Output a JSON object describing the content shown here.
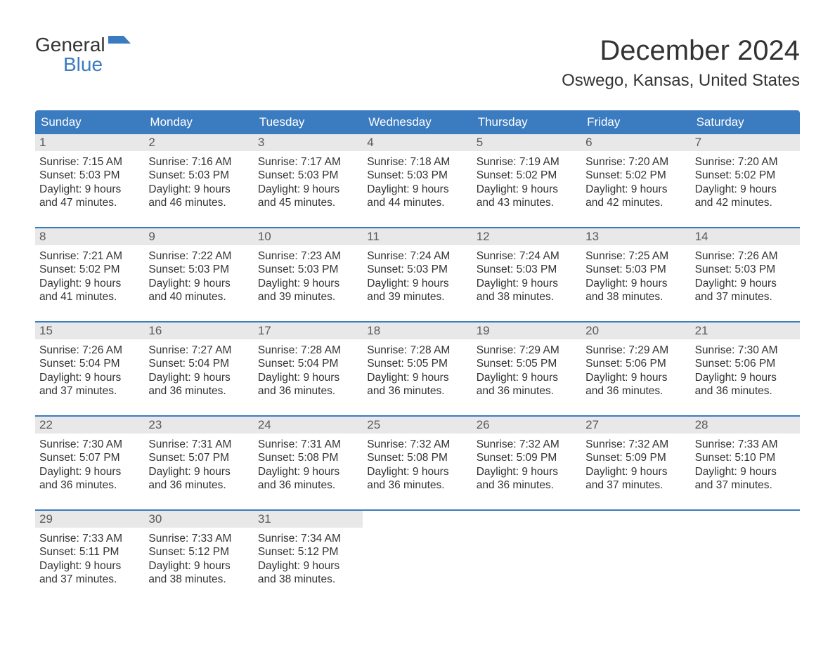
{
  "logo": {
    "line1": "General",
    "line2": "Blue",
    "icon_color": "#3b7bbf"
  },
  "title": "December 2024",
  "location": "Oswego, Kansas, United States",
  "colors": {
    "header_bg": "#3b7bbf",
    "header_text": "#ffffff",
    "daynum_bg": "#e8e8e8",
    "daynum_text": "#5a5a5a",
    "body_text": "#333333",
    "background": "#ffffff"
  },
  "typography": {
    "title_fontsize": 40,
    "location_fontsize": 24,
    "header_fontsize": 17,
    "daynum_fontsize": 17,
    "body_fontsize": 15.5
  },
  "day_headers": [
    "Sunday",
    "Monday",
    "Tuesday",
    "Wednesday",
    "Thursday",
    "Friday",
    "Saturday"
  ],
  "weeks": [
    [
      {
        "n": "1",
        "sunrise": "7:15 AM",
        "sunset": "5:03 PM",
        "daylight_l1": "Daylight: 9 hours",
        "daylight_l2": "and 47 minutes."
      },
      {
        "n": "2",
        "sunrise": "7:16 AM",
        "sunset": "5:03 PM",
        "daylight_l1": "Daylight: 9 hours",
        "daylight_l2": "and 46 minutes."
      },
      {
        "n": "3",
        "sunrise": "7:17 AM",
        "sunset": "5:03 PM",
        "daylight_l1": "Daylight: 9 hours",
        "daylight_l2": "and 45 minutes."
      },
      {
        "n": "4",
        "sunrise": "7:18 AM",
        "sunset": "5:03 PM",
        "daylight_l1": "Daylight: 9 hours",
        "daylight_l2": "and 44 minutes."
      },
      {
        "n": "5",
        "sunrise": "7:19 AM",
        "sunset": "5:02 PM",
        "daylight_l1": "Daylight: 9 hours",
        "daylight_l2": "and 43 minutes."
      },
      {
        "n": "6",
        "sunrise": "7:20 AM",
        "sunset": "5:02 PM",
        "daylight_l1": "Daylight: 9 hours",
        "daylight_l2": "and 42 minutes."
      },
      {
        "n": "7",
        "sunrise": "7:20 AM",
        "sunset": "5:02 PM",
        "daylight_l1": "Daylight: 9 hours",
        "daylight_l2": "and 42 minutes."
      }
    ],
    [
      {
        "n": "8",
        "sunrise": "7:21 AM",
        "sunset": "5:02 PM",
        "daylight_l1": "Daylight: 9 hours",
        "daylight_l2": "and 41 minutes."
      },
      {
        "n": "9",
        "sunrise": "7:22 AM",
        "sunset": "5:03 PM",
        "daylight_l1": "Daylight: 9 hours",
        "daylight_l2": "and 40 minutes."
      },
      {
        "n": "10",
        "sunrise": "7:23 AM",
        "sunset": "5:03 PM",
        "daylight_l1": "Daylight: 9 hours",
        "daylight_l2": "and 39 minutes."
      },
      {
        "n": "11",
        "sunrise": "7:24 AM",
        "sunset": "5:03 PM",
        "daylight_l1": "Daylight: 9 hours",
        "daylight_l2": "and 39 minutes."
      },
      {
        "n": "12",
        "sunrise": "7:24 AM",
        "sunset": "5:03 PM",
        "daylight_l1": "Daylight: 9 hours",
        "daylight_l2": "and 38 minutes."
      },
      {
        "n": "13",
        "sunrise": "7:25 AM",
        "sunset": "5:03 PM",
        "daylight_l1": "Daylight: 9 hours",
        "daylight_l2": "and 38 minutes."
      },
      {
        "n": "14",
        "sunrise": "7:26 AM",
        "sunset": "5:03 PM",
        "daylight_l1": "Daylight: 9 hours",
        "daylight_l2": "and 37 minutes."
      }
    ],
    [
      {
        "n": "15",
        "sunrise": "7:26 AM",
        "sunset": "5:04 PM",
        "daylight_l1": "Daylight: 9 hours",
        "daylight_l2": "and 37 minutes."
      },
      {
        "n": "16",
        "sunrise": "7:27 AM",
        "sunset": "5:04 PM",
        "daylight_l1": "Daylight: 9 hours",
        "daylight_l2": "and 36 minutes."
      },
      {
        "n": "17",
        "sunrise": "7:28 AM",
        "sunset": "5:04 PM",
        "daylight_l1": "Daylight: 9 hours",
        "daylight_l2": "and 36 minutes."
      },
      {
        "n": "18",
        "sunrise": "7:28 AM",
        "sunset": "5:05 PM",
        "daylight_l1": "Daylight: 9 hours",
        "daylight_l2": "and 36 minutes."
      },
      {
        "n": "19",
        "sunrise": "7:29 AM",
        "sunset": "5:05 PM",
        "daylight_l1": "Daylight: 9 hours",
        "daylight_l2": "and 36 minutes."
      },
      {
        "n": "20",
        "sunrise": "7:29 AM",
        "sunset": "5:06 PM",
        "daylight_l1": "Daylight: 9 hours",
        "daylight_l2": "and 36 minutes."
      },
      {
        "n": "21",
        "sunrise": "7:30 AM",
        "sunset": "5:06 PM",
        "daylight_l1": "Daylight: 9 hours",
        "daylight_l2": "and 36 minutes."
      }
    ],
    [
      {
        "n": "22",
        "sunrise": "7:30 AM",
        "sunset": "5:07 PM",
        "daylight_l1": "Daylight: 9 hours",
        "daylight_l2": "and 36 minutes."
      },
      {
        "n": "23",
        "sunrise": "7:31 AM",
        "sunset": "5:07 PM",
        "daylight_l1": "Daylight: 9 hours",
        "daylight_l2": "and 36 minutes."
      },
      {
        "n": "24",
        "sunrise": "7:31 AM",
        "sunset": "5:08 PM",
        "daylight_l1": "Daylight: 9 hours",
        "daylight_l2": "and 36 minutes."
      },
      {
        "n": "25",
        "sunrise": "7:32 AM",
        "sunset": "5:08 PM",
        "daylight_l1": "Daylight: 9 hours",
        "daylight_l2": "and 36 minutes."
      },
      {
        "n": "26",
        "sunrise": "7:32 AM",
        "sunset": "5:09 PM",
        "daylight_l1": "Daylight: 9 hours",
        "daylight_l2": "and 36 minutes."
      },
      {
        "n": "27",
        "sunrise": "7:32 AM",
        "sunset": "5:09 PM",
        "daylight_l1": "Daylight: 9 hours",
        "daylight_l2": "and 37 minutes."
      },
      {
        "n": "28",
        "sunrise": "7:33 AM",
        "sunset": "5:10 PM",
        "daylight_l1": "Daylight: 9 hours",
        "daylight_l2": "and 37 minutes."
      }
    ],
    [
      {
        "n": "29",
        "sunrise": "7:33 AM",
        "sunset": "5:11 PM",
        "daylight_l1": "Daylight: 9 hours",
        "daylight_l2": "and 37 minutes."
      },
      {
        "n": "30",
        "sunrise": "7:33 AM",
        "sunset": "5:12 PM",
        "daylight_l1": "Daylight: 9 hours",
        "daylight_l2": "and 38 minutes."
      },
      {
        "n": "31",
        "sunrise": "7:34 AM",
        "sunset": "5:12 PM",
        "daylight_l1": "Daylight: 9 hours",
        "daylight_l2": "and 38 minutes."
      },
      null,
      null,
      null,
      null
    ]
  ],
  "labels": {
    "sunrise_prefix": "Sunrise: ",
    "sunset_prefix": "Sunset: "
  }
}
